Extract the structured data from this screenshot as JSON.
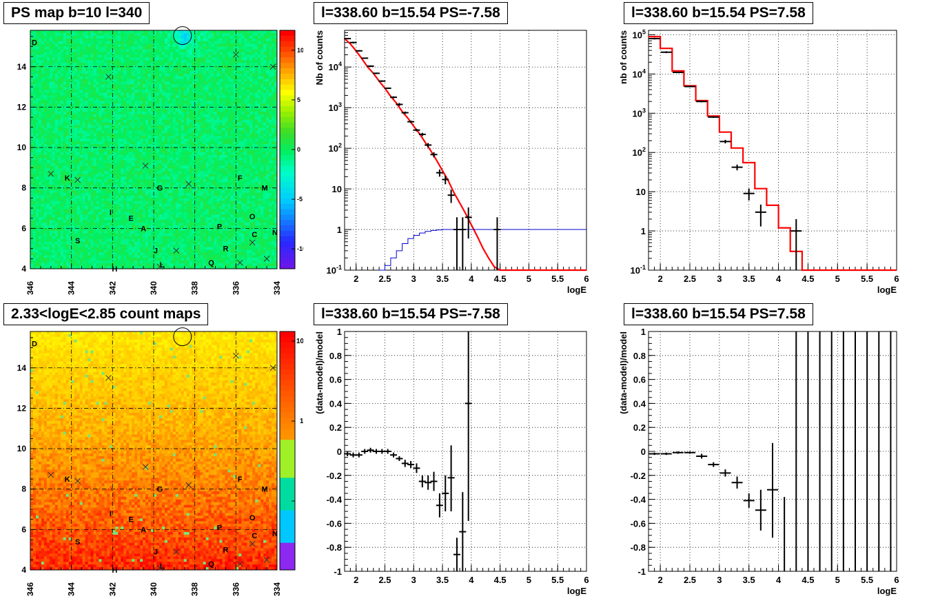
{
  "titles": {
    "p1": "PS map b=10 l=340",
    "p2": "l=338.60 b=15.54 PS=-7.58",
    "p3": "l=338.60 b=15.54 PS=7.58",
    "p4": "2.33<logE<2.85 count maps",
    "p5": "l=338.60 b=15.54 PS=-7.58",
    "p6": "l=338.60 b=15.54 PS=7.58"
  },
  "chart_data": [
    {
      "type": "heatmap",
      "title": "PS map b=10 l=340",
      "x_ticks": [
        "346",
        "344",
        "342",
        "340",
        "338",
        "336",
        "334"
      ],
      "y_ticks": [
        "4",
        "6",
        "8",
        "10",
        "12",
        "14"
      ],
      "xlim": [
        346,
        334
      ],
      "ylim": [
        4,
        15.8
      ],
      "colorbar_ticks": [
        "10",
        "5",
        "0",
        "-5",
        "-10"
      ],
      "colorbar_range": [
        -12,
        12
      ],
      "source_labels": [
        {
          "t": "D",
          "l": 345.8,
          "b": 15.2
        },
        {
          "t": "K",
          "l": 344.2,
          "b": 8.5
        },
        {
          "t": "G",
          "l": 339.7,
          "b": 8.0
        },
        {
          "t": "F",
          "l": 335.8,
          "b": 8.5
        },
        {
          "t": "M",
          "l": 334.6,
          "b": 8.0
        },
        {
          "t": "I",
          "l": 342.1,
          "b": 6.8
        },
        {
          "t": "E",
          "l": 341.1,
          "b": 6.5
        },
        {
          "t": "A",
          "l": 340.5,
          "b": 6.0
        },
        {
          "t": "P",
          "l": 336.8,
          "b": 6.1
        },
        {
          "t": "O",
          "l": 335.2,
          "b": 6.6
        },
        {
          "t": "C",
          "l": 335.1,
          "b": 5.7
        },
        {
          "t": "N",
          "l": 334.1,
          "b": 5.8
        },
        {
          "t": "S",
          "l": 343.7,
          "b": 5.4
        },
        {
          "t": "J",
          "l": 339.9,
          "b": 4.9
        },
        {
          "t": "R",
          "l": 336.5,
          "b": 5.0
        },
        {
          "t": "L",
          "l": 339.6,
          "b": 4.2
        },
        {
          "t": "Q",
          "l": 337.2,
          "b": 4.3
        },
        {
          "t": "H",
          "l": 341.9,
          "b": 4.0
        }
      ],
      "crosses": [
        {
          "l": 342.2,
          "b": 13.5
        },
        {
          "l": 336.0,
          "b": 14.6
        },
        {
          "l": 334.2,
          "b": 14.0
        },
        {
          "l": 345.0,
          "b": 8.7
        },
        {
          "l": 343.7,
          "b": 8.4
        },
        {
          "l": 340.4,
          "b": 9.1
        },
        {
          "l": 338.3,
          "b": 8.2
        },
        {
          "l": 335.2,
          "b": 5.3
        },
        {
          "l": 338.9,
          "b": 4.9
        },
        {
          "l": 335.8,
          "b": 4.3
        },
        {
          "l": 334.5,
          "b": 4.5
        },
        {
          "l": 339.7,
          "b": 4.1
        }
      ],
      "circle": {
        "l": 338.6,
        "b": 15.54
      }
    },
    {
      "type": "line",
      "title": "l=338.60 b=15.54 PS=-7.58",
      "xlabel": "logE",
      "ylabel": "Nb of counts",
      "xlim": [
        1.8,
        6
      ],
      "ylim": [
        0.1,
        80000
      ],
      "log_y": true,
      "x_ticks": [
        "2",
        "2.5",
        "3",
        "3.5",
        "4",
        "4.5",
        "5",
        "5.5",
        "6"
      ],
      "y_ticks": [
        "10^-1",
        "1",
        "10",
        "10^2",
        "10^3",
        "10^4"
      ],
      "model_red": [
        [
          1.8,
          50000
        ],
        [
          1.9,
          37000
        ],
        [
          2.0,
          25000
        ],
        [
          2.1,
          16000
        ],
        [
          2.2,
          10000
        ],
        [
          2.3,
          7000
        ],
        [
          2.4,
          4500
        ],
        [
          2.5,
          3000
        ],
        [
          2.6,
          1900
        ],
        [
          2.7,
          1300
        ],
        [
          2.8,
          800
        ],
        [
          2.9,
          550
        ],
        [
          3.0,
          350
        ],
        [
          3.1,
          230
        ],
        [
          3.2,
          140
        ],
        [
          3.3,
          85
        ],
        [
          3.4,
          50
        ],
        [
          3.5,
          28
        ],
        [
          3.6,
          16
        ],
        [
          3.7,
          8
        ],
        [
          3.8,
          4.5
        ],
        [
          3.9,
          2.5
        ],
        [
          4.0,
          1.3
        ],
        [
          4.1,
          0.7
        ],
        [
          4.2,
          0.35
        ],
        [
          4.3,
          0.2
        ],
        [
          4.4,
          0.12
        ],
        [
          4.5,
          0.1
        ],
        [
          6.0,
          0.1
        ]
      ],
      "model_blue": [
        [
          2.4,
          0.1
        ],
        [
          2.5,
          0.13
        ],
        [
          2.6,
          0.2
        ],
        [
          2.7,
          0.3
        ],
        [
          2.8,
          0.45
        ],
        [
          2.9,
          0.6
        ],
        [
          3.0,
          0.72
        ],
        [
          3.1,
          0.82
        ],
        [
          3.2,
          0.9
        ],
        [
          3.3,
          0.95
        ],
        [
          3.4,
          0.98
        ],
        [
          3.5,
          1.0
        ],
        [
          6.0,
          1.0
        ]
      ],
      "points": [
        {
          "x": 1.85,
          "y": 50000,
          "yl": 48000,
          "yh": 52000
        },
        {
          "x": 1.95,
          "y": 40000,
          "yl": 38000,
          "yh": 42000
        },
        {
          "x": 2.05,
          "y": 25000,
          "yl": 24000,
          "yh": 26000
        },
        {
          "x": 2.15,
          "y": 16500,
          "yl": 16000,
          "yh": 17000
        },
        {
          "x": 2.25,
          "y": 10500,
          "yl": 10000,
          "yh": 11000
        },
        {
          "x": 2.35,
          "y": 7000,
          "yl": 6700,
          "yh": 7300
        },
        {
          "x": 2.45,
          "y": 4500,
          "yl": 4300,
          "yh": 4700
        },
        {
          "x": 2.55,
          "y": 3000,
          "yl": 2900,
          "yh": 3100
        },
        {
          "x": 2.65,
          "y": 1800,
          "yl": 1700,
          "yh": 1900
        },
        {
          "x": 2.75,
          "y": 1200,
          "yl": 1100,
          "yh": 1300
        },
        {
          "x": 2.85,
          "y": 750,
          "yl": 700,
          "yh": 800
        },
        {
          "x": 2.95,
          "y": 450,
          "yl": 420,
          "yh": 480
        },
        {
          "x": 3.05,
          "y": 280,
          "yl": 260,
          "yh": 300
        },
        {
          "x": 3.15,
          "y": 220,
          "yl": 200,
          "yh": 240
        },
        {
          "x": 3.25,
          "y": 120,
          "yl": 105,
          "yh": 135
        },
        {
          "x": 3.35,
          "y": 70,
          "yl": 60,
          "yh": 80
        },
        {
          "x": 3.45,
          "y": 25,
          "yl": 20,
          "yh": 30
        },
        {
          "x": 3.55,
          "y": 17,
          "yl": 13,
          "yh": 21
        },
        {
          "x": 3.65,
          "y": 7,
          "yl": 4.5,
          "yh": 9.5
        },
        {
          "x": 3.75,
          "y": 1,
          "yl": 0.1,
          "yh": 2
        },
        {
          "x": 3.85,
          "y": 1,
          "yl": 0.1,
          "yh": 2
        },
        {
          "x": 3.95,
          "y": 2,
          "yl": 0.6,
          "yh": 3.5
        },
        {
          "x": 4.45,
          "y": 1,
          "yl": 0.1,
          "yh": 2
        }
      ]
    },
    {
      "type": "line",
      "title": "l=338.60 b=15.54 PS=7.58",
      "xlabel": "logE",
      "ylabel": "nb of counts",
      "xlim": [
        1.8,
        6
      ],
      "ylim": [
        0.1,
        130000
      ],
      "log_y": true,
      "x_ticks": [
        "2",
        "2.5",
        "3",
        "3.5",
        "4",
        "4.5",
        "5",
        "5.5",
        "6"
      ],
      "y_ticks": [
        "10^-1",
        "1",
        "10",
        "10^2",
        "10^3",
        "10^4",
        "10^5"
      ],
      "model_red": [
        [
          1.8,
          90000
        ],
        [
          2.0,
          90000
        ],
        [
          2.0,
          45000
        ],
        [
          2.2,
          45000
        ],
        [
          2.2,
          12000
        ],
        [
          2.4,
          12000
        ],
        [
          2.4,
          5000
        ],
        [
          2.6,
          5000
        ],
        [
          2.6,
          2100
        ],
        [
          2.8,
          2100
        ],
        [
          2.8,
          850
        ],
        [
          3.0,
          850
        ],
        [
          3.0,
          330
        ],
        [
          3.2,
          330
        ],
        [
          3.2,
          130
        ],
        [
          3.4,
          130
        ],
        [
          3.4,
          55
        ],
        [
          3.6,
          55
        ],
        [
          3.6,
          12
        ],
        [
          3.8,
          12
        ],
        [
          3.8,
          4.5
        ],
        [
          4.0,
          4.5
        ],
        [
          4.0,
          1.2
        ],
        [
          4.2,
          1.2
        ],
        [
          4.2,
          0.3
        ],
        [
          4.4,
          0.3
        ],
        [
          4.4,
          0.1
        ],
        [
          6.0,
          0.1
        ]
      ],
      "points": [
        {
          "x": 1.9,
          "y": 80000,
          "yl": 76000,
          "yh": 84000
        },
        {
          "x": 2.1,
          "y": 36000,
          "yl": 34000,
          "yh": 38000
        },
        {
          "x": 2.3,
          "y": 11000,
          "yl": 10500,
          "yh": 11500
        },
        {
          "x": 2.5,
          "y": 4800,
          "yl": 4600,
          "yh": 5000
        },
        {
          "x": 2.7,
          "y": 2000,
          "yl": 1900,
          "yh": 2100
        },
        {
          "x": 2.9,
          "y": 800,
          "yl": 760,
          "yh": 840
        },
        {
          "x": 3.1,
          "y": 190,
          "yl": 170,
          "yh": 210
        },
        {
          "x": 3.3,
          "y": 42,
          "yl": 35,
          "yh": 49
        },
        {
          "x": 3.5,
          "y": 9,
          "yl": 6,
          "yh": 12
        },
        {
          "x": 3.7,
          "y": 3,
          "yl": 1.3,
          "yh": 4.7
        },
        {
          "x": 4.3,
          "y": 1,
          "yl": 0.1,
          "yh": 2
        }
      ]
    },
    {
      "type": "heatmap",
      "title": "2.33<logE<2.85 count maps",
      "x_ticks": [
        "346",
        "344",
        "342",
        "340",
        "338",
        "336",
        "334"
      ],
      "y_ticks": [
        "4",
        "6",
        "8",
        "10",
        "12",
        "14"
      ],
      "xlim": [
        346,
        334
      ],
      "ylim": [
        4,
        15.8
      ],
      "colorbar_ticks": [
        "10^2",
        "10",
        "1"
      ],
      "log_colorbar": true
    },
    {
      "type": "scatter",
      "title": "l=338.60 b=15.54 PS=-7.58",
      "xlabel": "logE",
      "ylabel": "(data-model)/model",
      "xlim": [
        1.8,
        6
      ],
      "ylim": [
        -1,
        1
      ],
      "x_ticks": [
        "2",
        "2.5",
        "3",
        "3.5",
        "4",
        "4.5",
        "5",
        "5.5",
        "6"
      ],
      "y_ticks": [
        "-1",
        "-0.8",
        "-0.6",
        "-0.4",
        "-0.2",
        "0",
        "0.2",
        "0.4",
        "0.6",
        "0.8",
        "1"
      ],
      "points": [
        {
          "x": 1.85,
          "y": -0.02,
          "yl": -0.04,
          "yh": 0.0
        },
        {
          "x": 1.95,
          "y": -0.03,
          "yl": -0.05,
          "yh": -0.01
        },
        {
          "x": 2.05,
          "y": -0.03,
          "yl": -0.05,
          "yh": -0.01
        },
        {
          "x": 2.15,
          "y": 0.0,
          "yl": -0.02,
          "yh": 0.02
        },
        {
          "x": 2.25,
          "y": 0.01,
          "yl": -0.01,
          "yh": 0.03
        },
        {
          "x": 2.35,
          "y": 0.0,
          "yl": -0.02,
          "yh": 0.02
        },
        {
          "x": 2.45,
          "y": 0.0,
          "yl": -0.02,
          "yh": 0.02
        },
        {
          "x": 2.55,
          "y": 0.0,
          "yl": -0.02,
          "yh": 0.02
        },
        {
          "x": 2.65,
          "y": -0.03,
          "yl": -0.05,
          "yh": -0.01
        },
        {
          "x": 2.75,
          "y": -0.06,
          "yl": -0.08,
          "yh": -0.04
        },
        {
          "x": 2.85,
          "y": -0.1,
          "yl": -0.13,
          "yh": -0.07
        },
        {
          "x": 2.95,
          "y": -0.11,
          "yl": -0.14,
          "yh": -0.08
        },
        {
          "x": 3.05,
          "y": -0.14,
          "yl": -0.18,
          "yh": -0.1
        },
        {
          "x": 3.15,
          "y": -0.25,
          "yl": -0.3,
          "yh": -0.2
        },
        {
          "x": 3.25,
          "y": -0.26,
          "yl": -0.32,
          "yh": -0.2
        },
        {
          "x": 3.35,
          "y": -0.25,
          "yl": -0.33,
          "yh": -0.17
        },
        {
          "x": 3.45,
          "y": -0.45,
          "yl": -0.55,
          "yh": -0.35
        },
        {
          "x": 3.55,
          "y": -0.35,
          "yl": -0.5,
          "yh": -0.2
        },
        {
          "x": 3.65,
          "y": -0.22,
          "yl": -0.5,
          "yh": 0.05
        },
        {
          "x": 3.75,
          "y": -0.86,
          "yl": -1.0,
          "yh": -0.72
        },
        {
          "x": 3.85,
          "y": -0.67,
          "yl": -1.0,
          "yh": -0.34
        },
        {
          "x": 3.95,
          "y": 0.4,
          "yl": -0.58,
          "yh": 1.0
        }
      ]
    },
    {
      "type": "scatter",
      "title": "l=338.60 b=15.54 PS=7.58",
      "xlabel": "logE",
      "ylabel": "(data-model)/model",
      "xlim": [
        1.8,
        6
      ],
      "ylim": [
        -1,
        1
      ],
      "x_ticks": [
        "2",
        "2.5",
        "3",
        "3.5",
        "4",
        "4.5",
        "5",
        "5.5",
        "6"
      ],
      "y_ticks": [
        "-1",
        "-0.8",
        "-0.6",
        "-0.4",
        "-0.2",
        "0",
        "0.2",
        "0.4",
        "0.6",
        "0.8",
        "1"
      ],
      "points": [
        {
          "x": 1.9,
          "y": -0.02,
          "yl": -0.03,
          "yh": -0.01
        },
        {
          "x": 2.1,
          "y": -0.02,
          "yl": -0.03,
          "yh": -0.01
        },
        {
          "x": 2.3,
          "y": -0.01,
          "yl": -0.02,
          "yh": 0.0
        },
        {
          "x": 2.5,
          "y": -0.01,
          "yl": -0.02,
          "yh": 0.0
        },
        {
          "x": 2.7,
          "y": -0.04,
          "yl": -0.06,
          "yh": -0.02
        },
        {
          "x": 2.9,
          "y": -0.11,
          "yl": -0.13,
          "yh": -0.09
        },
        {
          "x": 3.1,
          "y": -0.18,
          "yl": -0.21,
          "yh": -0.15
        },
        {
          "x": 3.3,
          "y": -0.26,
          "yl": -0.31,
          "yh": -0.21
        },
        {
          "x": 3.5,
          "y": -0.41,
          "yl": -0.47,
          "yh": -0.35
        },
        {
          "x": 3.7,
          "y": -0.49,
          "yl": -0.66,
          "yh": -0.32
        },
        {
          "x": 3.9,
          "y": -0.32,
          "yl": -0.72,
          "yh": 0.07
        },
        {
          "x": 4.1,
          "y": -1.0,
          "yl": -1.0,
          "yh": -0.38
        },
        {
          "x": 4.3,
          "y": -1.0,
          "yl": -1.0,
          "yh": 1.0
        },
        {
          "x": 4.5,
          "y": -1.0,
          "yl": -1.0,
          "yh": 1.0
        },
        {
          "x": 4.7,
          "y": -1.0,
          "yl": -1.0,
          "yh": 1.0
        },
        {
          "x": 4.9,
          "y": -1.0,
          "yl": -1.0,
          "yh": 1.0
        },
        {
          "x": 5.1,
          "y": -1.0,
          "yl": -1.0,
          "yh": 1.0
        },
        {
          "x": 5.3,
          "y": -1.0,
          "yl": -1.0,
          "yh": 1.0
        },
        {
          "x": 5.5,
          "y": -1.0,
          "yl": -1.0,
          "yh": 1.0
        },
        {
          "x": 5.7,
          "y": -1.0,
          "yl": -1.0,
          "yh": 1.0
        },
        {
          "x": 5.9,
          "y": -1.0,
          "yl": -1.0,
          "yh": 1.0
        }
      ]
    }
  ]
}
